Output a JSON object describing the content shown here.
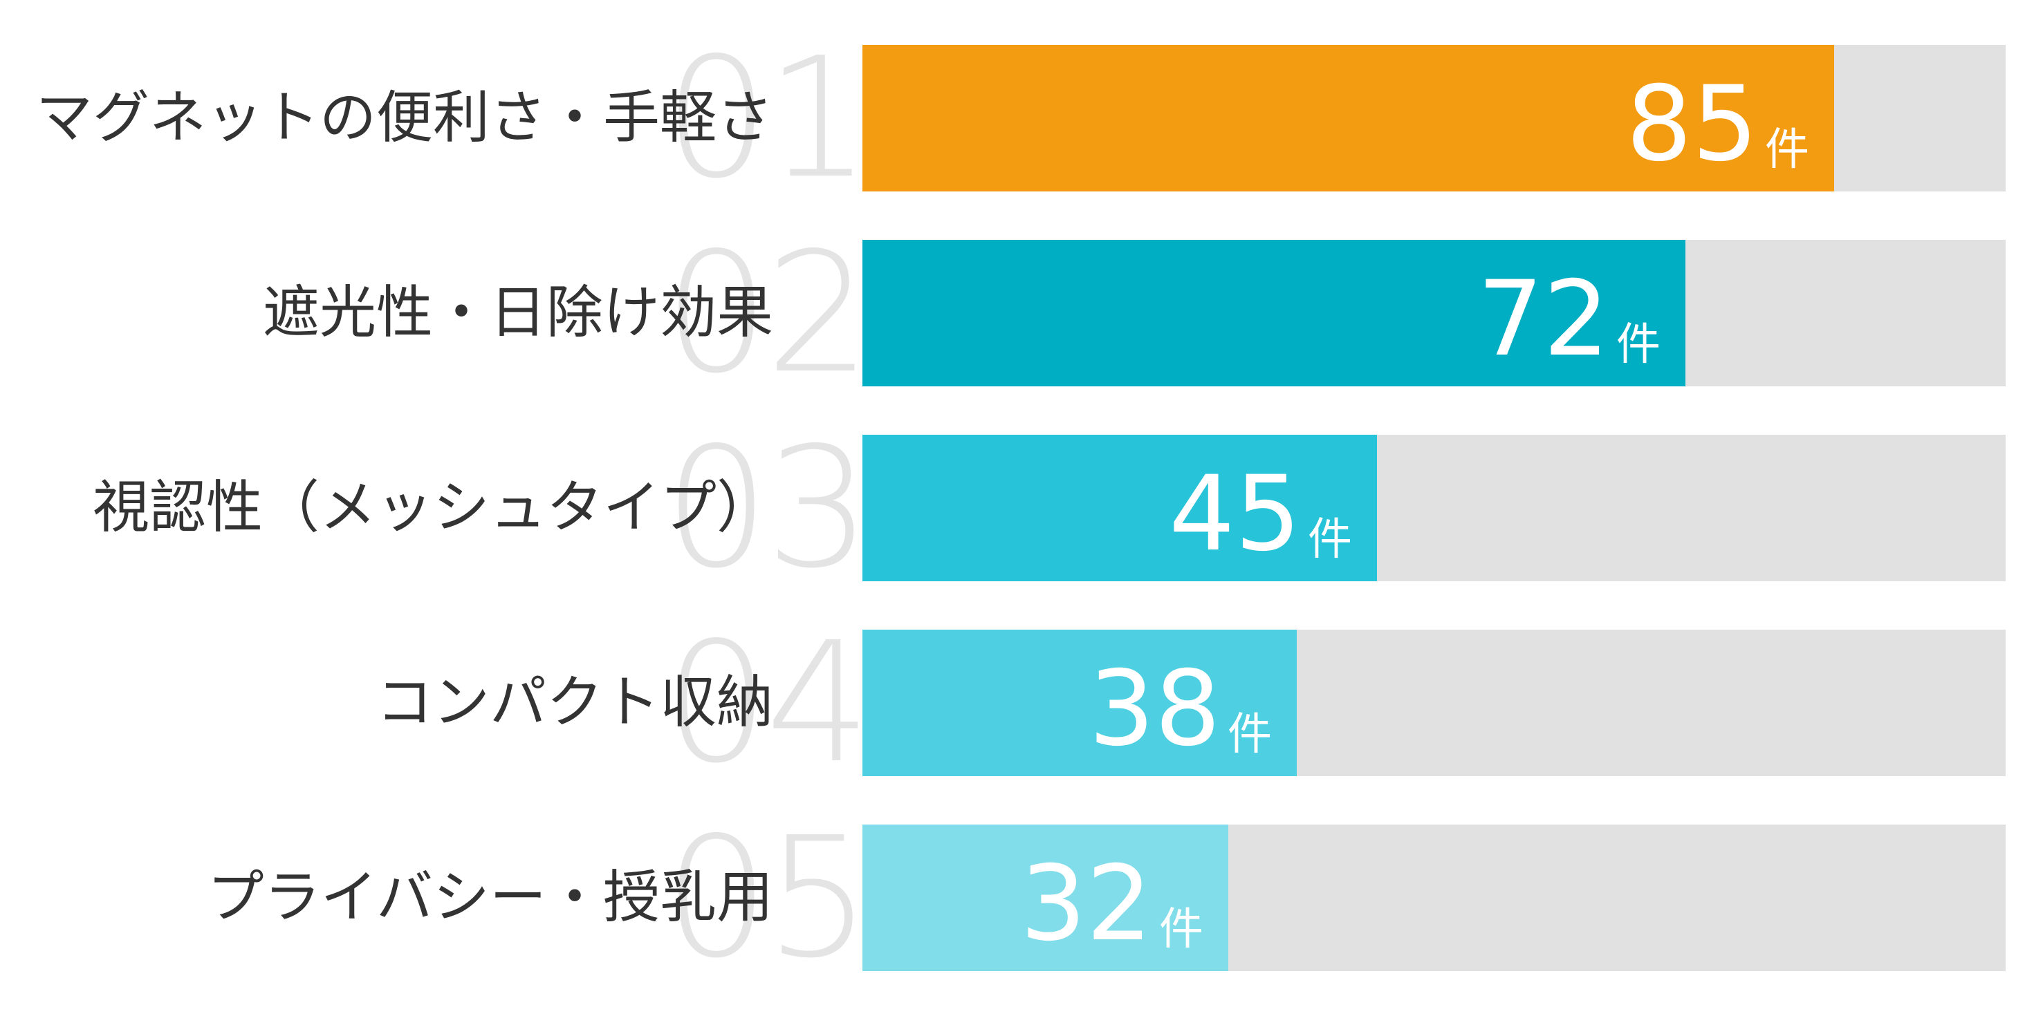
{
  "chart_data": {
    "type": "bar",
    "orientation": "horizontal",
    "xlim": [
      0,
      100
    ],
    "unit": "件",
    "items": [
      {
        "rank": "01",
        "label": "マグネットの便利さ・手軽さ",
        "value": 85,
        "color": "#f39c12"
      },
      {
        "rank": "02",
        "label": "遮光性・日除け効果",
        "value": 72,
        "color": "#00aec4"
      },
      {
        "rank": "03",
        "label": "視認性（メッシュタイプ）",
        "value": 45,
        "color": "#27c3d8"
      },
      {
        "rank": "04",
        "label": "コンパクト収納",
        "value": 38,
        "color": "#4fd0e2"
      },
      {
        "rank": "05",
        "label": "プライバシー・授乳用",
        "value": 32,
        "color": "#80dde9"
      }
    ],
    "track_color": "#e1e1e1"
  }
}
